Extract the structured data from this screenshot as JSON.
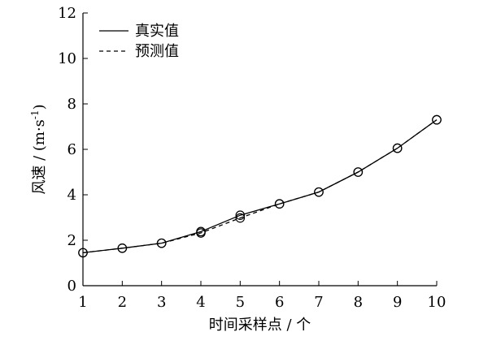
{
  "chart_data": {
    "type": "line",
    "xlabel": "时间采样点 / 个",
    "ylabel": "风速 / (m·s",
    "ylabel_sup": "-1",
    "ylabel_close": ")",
    "xlim": [
      1,
      10
    ],
    "ylim": [
      0,
      12
    ],
    "x_ticks": [
      1,
      2,
      3,
      4,
      5,
      6,
      7,
      8,
      9,
      10
    ],
    "y_ticks": [
      0,
      2,
      4,
      6,
      8,
      10,
      12
    ],
    "grid": false,
    "legend_position": "top-left",
    "series": [
      {
        "name": "真实值",
        "line_style": "solid",
        "x": [
          1,
          2,
          3,
          4,
          5,
          6,
          7,
          8,
          9,
          10
        ],
        "values": [
          1.45,
          1.65,
          1.87,
          2.38,
          3.1,
          3.6,
          4.12,
          5.0,
          6.05,
          7.3
        ]
      },
      {
        "name": "预测值",
        "line_style": "dashed",
        "x": [
          1,
          2,
          3,
          4,
          5,
          6,
          7,
          8,
          9,
          10
        ],
        "values": [
          1.45,
          1.65,
          1.87,
          2.32,
          2.98,
          3.6,
          4.12,
          5.0,
          6.05,
          7.3
        ]
      }
    ],
    "colors": {
      "line": "#000000",
      "marker": "#000000",
      "background": "#ffffff"
    }
  }
}
